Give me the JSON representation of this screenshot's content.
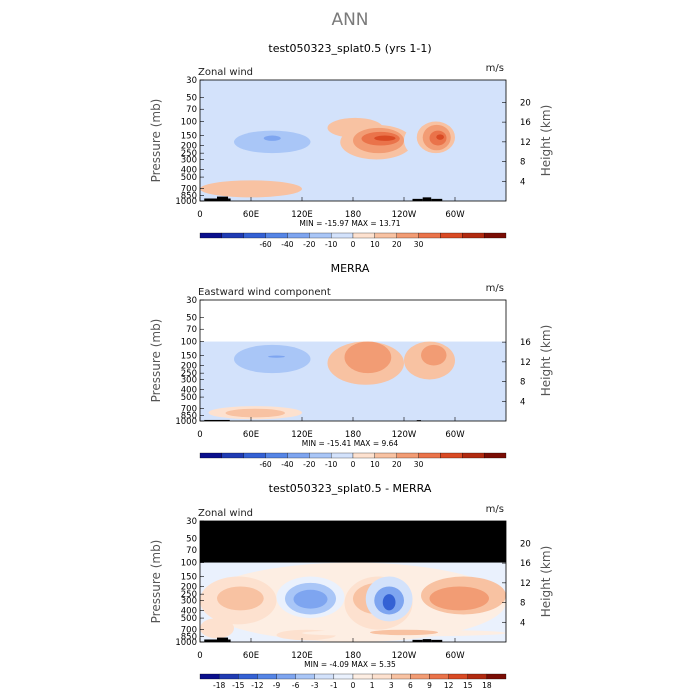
{
  "page_title": "ANN",
  "colors": {
    "frame": "#000000",
    "masked": "#000000",
    "land": "#000000",
    "contour_line": "none"
  },
  "palettes": {
    "wind": {
      "labels": [
        "-60",
        "-40",
        "-20",
        "-10",
        "0",
        "10",
        "20",
        "30"
      ],
      "colors": [
        "#0a0f8c",
        "#1f3bb3",
        "#3461d4",
        "#5585e6",
        "#7ea5f0",
        "#a9c6f7",
        "#d3e2fb",
        "#fde1cf",
        "#f8c2a2",
        "#f29c74",
        "#ea734a",
        "#d94a24",
        "#b12a10",
        "#7a0d05"
      ]
    },
    "diff": {
      "labels": [
        "-18",
        "-15",
        "-12",
        "-9",
        "-6",
        "-3",
        "-1",
        "0",
        "1",
        "3",
        "6",
        "9",
        "12",
        "15",
        "18"
      ],
      "colors": [
        "#0a0f8c",
        "#1f3bb3",
        "#3461d4",
        "#5585e6",
        "#7ea5f0",
        "#a9c6f7",
        "#d3e2fb",
        "#eaf1fd",
        "#fdeee3",
        "#fde1cf",
        "#f8c2a2",
        "#f29c74",
        "#ea734a",
        "#d94a24",
        "#b12a10",
        "#7a0d05"
      ]
    }
  },
  "chart_data": [
    {
      "type": "heatmap",
      "id": "model",
      "title": "test050323_splat0.5 (yrs 1-1)",
      "left_text": "Zonal wind",
      "right_text": "m/s",
      "ylabel": "Pressure (mb)",
      "y2label": "Height (km)",
      "ylim": [
        1000,
        30
      ],
      "yticks": [
        "30",
        "50",
        "70",
        "100",
        "150",
        "200",
        "250",
        "300",
        "400",
        "500",
        "700",
        "850",
        "1000"
      ],
      "y2ticks": [
        "20",
        "16",
        "12",
        "8",
        "4"
      ],
      "xticks": [
        "0",
        "60E",
        "120E",
        "180",
        "120W",
        "60W"
      ],
      "min": -15.97,
      "max": 13.71,
      "stats": "MIN = -15.97   MAX =  13.71",
      "palette": "wind",
      "masked_top_p": null,
      "features": [
        {
          "lon": [
            15,
            150
          ],
          "p": [
            100,
            300
          ],
          "level": 6
        },
        {
          "lon": [
            40,
            130
          ],
          "p": [
            130,
            250
          ],
          "level": 5
        },
        {
          "lon": [
            75,
            95
          ],
          "p": [
            150,
            175
          ],
          "level": 4
        },
        {
          "lon": [
            150,
            215
          ],
          "p": [
            90,
            160
          ],
          "level": 8
        },
        {
          "lon": [
            165,
            250
          ],
          "p": [
            110,
            300
          ],
          "level": 8
        },
        {
          "lon": [
            180,
            240
          ],
          "p": [
            120,
            250
          ],
          "level": 9
        },
        {
          "lon": [
            190,
            235
          ],
          "p": [
            135,
            200
          ],
          "level": 10
        },
        {
          "lon": [
            205,
            230
          ],
          "p": [
            150,
            175
          ],
          "level": 11
        },
        {
          "lon": [
            240,
            300
          ],
          "p": [
            100,
            300
          ],
          "level": 6
        },
        {
          "lon": [
            255,
            300
          ],
          "p": [
            100,
            250
          ],
          "level": 8
        },
        {
          "lon": [
            262,
            295
          ],
          "p": [
            110,
            230
          ],
          "level": 9
        },
        {
          "lon": [
            270,
            290
          ],
          "p": [
            130,
            200
          ],
          "level": 10
        },
        {
          "lon": [
            278,
            287
          ],
          "p": [
            145,
            170
          ],
          "level": 11
        },
        {
          "lon": [
            0,
            120
          ],
          "p": [
            550,
            900
          ],
          "level": 8
        },
        {
          "lon": [
            230,
            260
          ],
          "p": [
            500,
            1000
          ],
          "level": 6
        }
      ],
      "land": [
        {
          "lon": [
            5,
            20
          ],
          "p": [
            930,
            1000
          ]
        },
        {
          "lon": [
            20,
            33
          ],
          "p": [
            880,
            1000
          ]
        },
        {
          "lon": [
            33,
            36
          ],
          "p": [
            930,
            1000
          ]
        },
        {
          "lon": [
            250,
            262
          ],
          "p": [
            940,
            1000
          ]
        },
        {
          "lon": [
            262,
            272
          ],
          "p": [
            900,
            1000
          ]
        },
        {
          "lon": [
            272,
            285
          ],
          "p": [
            940,
            1000
          ]
        }
      ]
    },
    {
      "type": "heatmap",
      "id": "obs",
      "title": "MERRA",
      "left_text": "Eastward wind component",
      "right_text": "m/s",
      "ylabel": "Pressure (mb)",
      "y2label": "Height (km)",
      "ylim": [
        1000,
        30
      ],
      "yticks": [
        "30",
        "50",
        "70",
        "100",
        "150",
        "200",
        "250",
        "300",
        "400",
        "500",
        "700",
        "850",
        "1000"
      ],
      "y2ticks": [
        "16",
        "12",
        "8",
        "4"
      ],
      "xticks": [
        "0",
        "60E",
        "120E",
        "180",
        "120W",
        "60W"
      ],
      "min": -15.41,
      "max": 9.64,
      "stats": "MIN = -15.41   MAX =   9.64",
      "palette": "wind",
      "masked_top_p": 100,
      "masked_color": "#ffffff",
      "features": [
        {
          "lon": [
            10,
            160
          ],
          "p": [
            100,
            350
          ],
          "level": 6
        },
        {
          "lon": [
            40,
            130
          ],
          "p": [
            110,
            250
          ],
          "level": 5
        },
        {
          "lon": [
            80,
            100
          ],
          "p": [
            150,
            160
          ],
          "level": 4
        },
        {
          "lon": [
            0,
            360
          ],
          "p": [
            500,
            800
          ],
          "level": 6
        },
        {
          "lon": [
            150,
            240
          ],
          "p": [
            100,
            350
          ],
          "level": 8
        },
        {
          "lon": [
            170,
            225
          ],
          "p": [
            100,
            250
          ],
          "level": 9
        },
        {
          "lon": [
            240,
            300
          ],
          "p": [
            100,
            300
          ],
          "level": 8
        },
        {
          "lon": [
            260,
            290
          ],
          "p": [
            110,
            200
          ],
          "level": 9
        },
        {
          "lon": [
            10,
            120
          ],
          "p": [
            650,
            950
          ],
          "level": 7
        },
        {
          "lon": [
            30,
            100
          ],
          "p": [
            700,
            900
          ],
          "level": 8
        }
      ],
      "land": [
        {
          "lon": [
            5,
            35
          ],
          "p": [
            970,
            1000
          ]
        },
        {
          "lon": [
            255,
            260
          ],
          "p": [
            975,
            1000
          ]
        }
      ]
    },
    {
      "type": "heatmap",
      "id": "diff",
      "title": "test050323_splat0.5 - MERRA",
      "left_text": "Zonal wind",
      "right_text": "m/s",
      "ylabel": "Pressure (mb)",
      "y2label": "Height (km)",
      "ylim": [
        1000,
        30
      ],
      "yticks": [
        "30",
        "50",
        "70",
        "100",
        "150",
        "200",
        "250",
        "300",
        "400",
        "500",
        "700",
        "850",
        "1000"
      ],
      "y2ticks": [
        "20",
        "16",
        "12",
        "8",
        "4"
      ],
      "xticks": [
        "0",
        "60E",
        "120E",
        "180",
        "120W",
        "60W"
      ],
      "min": -4.09,
      "max": 5.35,
      "stats": "MIN = -4.09   MAX =   5.35",
      "palette": "diff",
      "masked_top_p": 100,
      "masked_color": "#000000",
      "features": [
        {
          "lon": [
            0,
            360
          ],
          "p": [
            100,
            1000
          ],
          "level": 8
        },
        {
          "lon": [
            0,
            90
          ],
          "p": [
            150,
            600
          ],
          "level": 9
        },
        {
          "lon": [
            20,
            75
          ],
          "p": [
            200,
            400
          ],
          "level": 10
        },
        {
          "lon": [
            0,
            40
          ],
          "p": [
            500,
            900
          ],
          "level": 9
        },
        {
          "lon": [
            90,
            170
          ],
          "p": [
            150,
            500
          ],
          "level": 7
        },
        {
          "lon": [
            100,
            160
          ],
          "p": [
            180,
            450
          ],
          "level": 5
        },
        {
          "lon": [
            110,
            150
          ],
          "p": [
            220,
            380
          ],
          "level": 4
        },
        {
          "lon": [
            170,
            250
          ],
          "p": [
            150,
            700
          ],
          "level": 9
        },
        {
          "lon": [
            180,
            240
          ],
          "p": [
            180,
            450
          ],
          "level": 10
        },
        {
          "lon": [
            195,
            250
          ],
          "p": [
            150,
            550
          ],
          "level": 6
        },
        {
          "lon": [
            205,
            240
          ],
          "p": [
            200,
            450
          ],
          "level": 4
        },
        {
          "lon": [
            215,
            230
          ],
          "p": [
            250,
            400
          ],
          "level": 2
        },
        {
          "lon": [
            260,
            360
          ],
          "p": [
            150,
            450
          ],
          "level": 10
        },
        {
          "lon": [
            270,
            340
          ],
          "p": [
            200,
            400
          ],
          "level": 11
        },
        {
          "lon": [
            90,
            160
          ],
          "p": [
            700,
            950
          ],
          "level": 9
        },
        {
          "lon": [
            120,
            360
          ],
          "p": [
            700,
            850
          ],
          "level": 8
        },
        {
          "lon": [
            200,
            280
          ],
          "p": [
            700,
            820
          ],
          "level": 10
        }
      ],
      "land": [
        {
          "lon": [
            5,
            20
          ],
          "p": [
            930,
            1000
          ]
        },
        {
          "lon": [
            20,
            33
          ],
          "p": [
            880,
            1000
          ]
        },
        {
          "lon": [
            33,
            36
          ],
          "p": [
            930,
            1000
          ]
        },
        {
          "lon": [
            250,
            262
          ],
          "p": [
            940,
            1000
          ]
        },
        {
          "lon": [
            262,
            272
          ],
          "p": [
            920,
            1000
          ]
        },
        {
          "lon": [
            272,
            285
          ],
          "p": [
            940,
            1000
          ]
        }
      ]
    }
  ]
}
